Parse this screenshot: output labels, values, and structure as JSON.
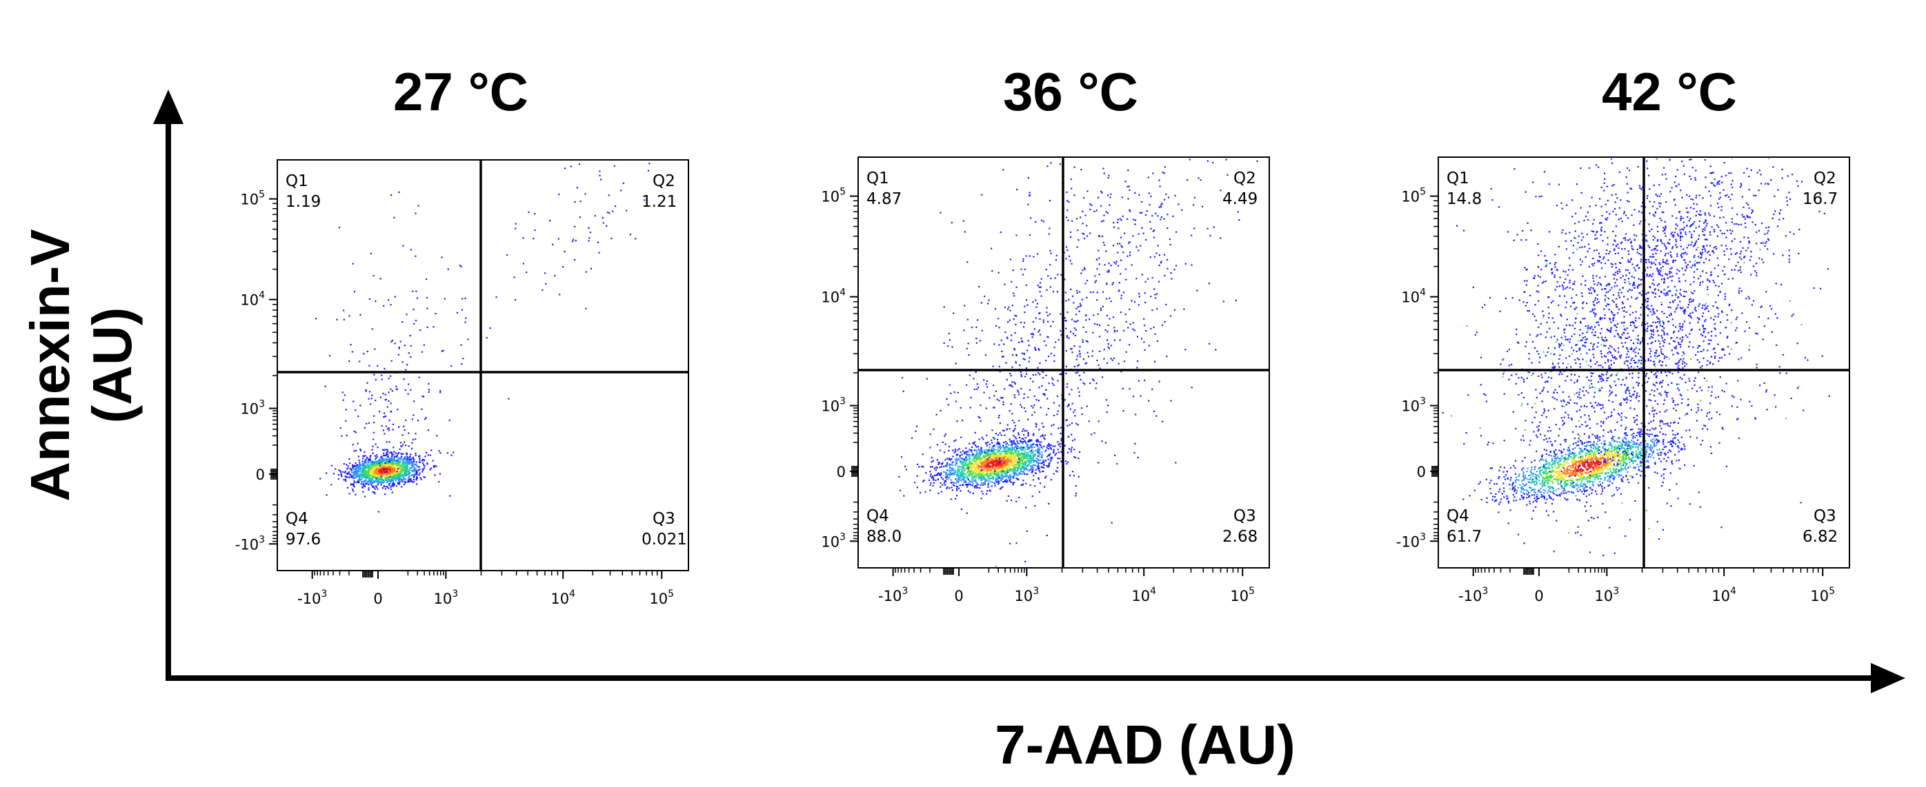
{
  "colors": {
    "axis": "#000000",
    "density": [
      "#1a1aff",
      "#2f8dff",
      "#19c7b4",
      "#4fdc45",
      "#f2e234",
      "#ff7a1a",
      "#e4201b"
    ]
  },
  "figure": {
    "y_axis_label_line1": "Annexin-V",
    "y_axis_label_line2": "(AU)",
    "x_axis_label": "7-AAD (AU)"
  },
  "chart_data": [
    {
      "type": "scatter",
      "title": "27 °C",
      "xlabel": "7-AAD (AU)",
      "ylabel": "Annexin-V (AU)",
      "scale": "biexponential",
      "x_ticks": [
        "-10^3",
        "0",
        "10^3",
        "10^4",
        "10^5"
      ],
      "y_ticks": [
        "-10^3",
        "0",
        "10^3",
        "10^4",
        "10^5"
      ],
      "quadrants": [
        {
          "name": "Q1",
          "value": "1.19"
        },
        {
          "name": "Q2",
          "value": "1.21"
        },
        {
          "name": "Q3",
          "value": "0.021"
        },
        {
          "name": "Q4",
          "value": "97.6"
        }
      ]
    },
    {
      "type": "scatter",
      "title": "36 °C",
      "xlabel": "7-AAD (AU)",
      "ylabel": "Annexin-V (AU)",
      "scale": "biexponential",
      "x_ticks": [
        "-10^3",
        "0",
        "10^3",
        "10^4",
        "10^5"
      ],
      "y_ticks": [
        "10^3",
        "0",
        "10^3",
        "10^4",
        "10^5"
      ],
      "quadrants": [
        {
          "name": "Q1",
          "value": "4.87"
        },
        {
          "name": "Q2",
          "value": "4.49"
        },
        {
          "name": "Q3",
          "value": "2.68"
        },
        {
          "name": "Q4",
          "value": "88.0"
        }
      ]
    },
    {
      "type": "scatter",
      "title": "42 °C",
      "xlabel": "7-AAD (AU)",
      "ylabel": "Annexin-V (AU)",
      "scale": "biexponential",
      "x_ticks": [
        "-10^3",
        "0",
        "10^3",
        "10^4",
        "10^5"
      ],
      "y_ticks": [
        "-10^3",
        "0",
        "10^3",
        "10^4",
        "10^5"
      ],
      "quadrants": [
        {
          "name": "Q1",
          "value": "14.8"
        },
        {
          "name": "Q2",
          "value": "16.7"
        },
        {
          "name": "Q3",
          "value": "6.82"
        },
        {
          "name": "Q4",
          "value": "61.7"
        }
      ]
    }
  ]
}
